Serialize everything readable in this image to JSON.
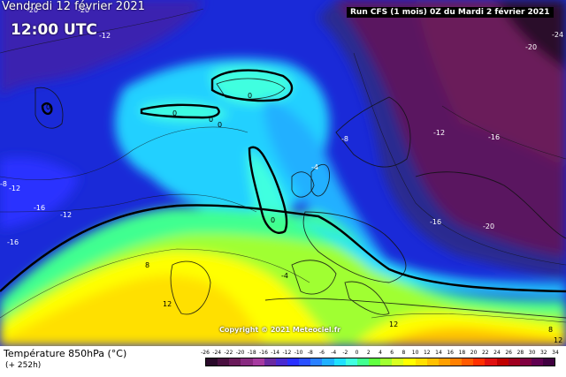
{
  "header": {
    "date": "Vendredi 12 février 2021",
    "hour": "12:00 UTC",
    "run": "Run CFS (1 mois) 0Z du Mardi 2 février 2021"
  },
  "copyright": "Copyright © 2021 Meteociel.fr",
  "footer": {
    "title": "Température 850hPa (°C)",
    "subtitle": "(+ 252h)"
  },
  "scale": {
    "ticks": [
      "-26",
      "-24",
      "-22",
      "-20",
      "-18",
      "-16",
      "-14",
      "-12",
      "-10",
      "-8",
      "-6",
      "-4",
      "-2",
      "0",
      "2",
      "4",
      "6",
      "8",
      "10",
      "12",
      "14",
      "16",
      "18",
      "20",
      "22",
      "24",
      "26",
      "28",
      "30",
      "32",
      "34"
    ],
    "colors": [
      "#2a0a2a",
      "#4a1040",
      "#6a1a5a",
      "#882a80",
      "#a63aa0",
      "#6a2aa0",
      "#4a2ad0",
      "#2a30ff",
      "#2a50ff",
      "#2a80ff",
      "#20b0ff",
      "#20e0ff",
      "#40ffe0",
      "#40ff90",
      "#60ff40",
      "#a0ff30",
      "#d8ff20",
      "#ffff00",
      "#ffe000",
      "#ffc000",
      "#ffa000",
      "#ff8000",
      "#ff5a00",
      "#ff3000",
      "#e01010",
      "#c00000",
      "#a00020",
      "#800040",
      "#600050",
      "#400040"
    ]
  },
  "map_labels": [
    {
      "text": "-20",
      "id": "label-nw-minus20"
    },
    {
      "text": "-12",
      "id": "label-utc-minus12"
    },
    {
      "text": "-20",
      "id": "label-top-minus20"
    },
    {
      "text": "-24",
      "id": "label-ne-minus24"
    },
    {
      "text": "-20",
      "id": "label-ne-minus20"
    },
    {
      "text": "0",
      "id": "label-greenland-0"
    },
    {
      "text": "0",
      "id": "label-iceland-0"
    },
    {
      "text": "0",
      "id": "label-atlantic-0a"
    },
    {
      "text": "0",
      "id": "label-atlantic-0b"
    },
    {
      "text": "0",
      "id": "label-atlantic-0c"
    },
    {
      "text": "-8",
      "id": "label-north-minus8"
    },
    {
      "text": "-12",
      "id": "label-scand-minus12"
    },
    {
      "text": "-16",
      "id": "label-russia-minus16"
    },
    {
      "text": "-4",
      "id": "label-uk-minus4"
    },
    {
      "text": "-12",
      "id": "label-west-minus12a"
    },
    {
      "text": "-16",
      "id": "label-west-minus16"
    },
    {
      "text": "-12",
      "id": "label-west-minus12b"
    },
    {
      "text": "-16",
      "id": "label-west-minus16b"
    },
    {
      "text": "-8",
      "id": "label-west-minus8"
    },
    {
      "text": "0",
      "id": "label-ocean-0"
    },
    {
      "text": "-16",
      "id": "label-east-minus16"
    },
    {
      "text": "-20",
      "id": "label-east-minus20"
    },
    {
      "text": "8",
      "id": "label-atl-8"
    },
    {
      "text": "12",
      "id": "label-atl-12"
    },
    {
      "text": "-4",
      "id": "label-france-minus4"
    },
    {
      "text": "12",
      "id": "label-africa-12"
    },
    {
      "text": "8",
      "id": "label-east-8"
    },
    {
      "text": "12",
      "id": "label-east-12"
    }
  ]
}
